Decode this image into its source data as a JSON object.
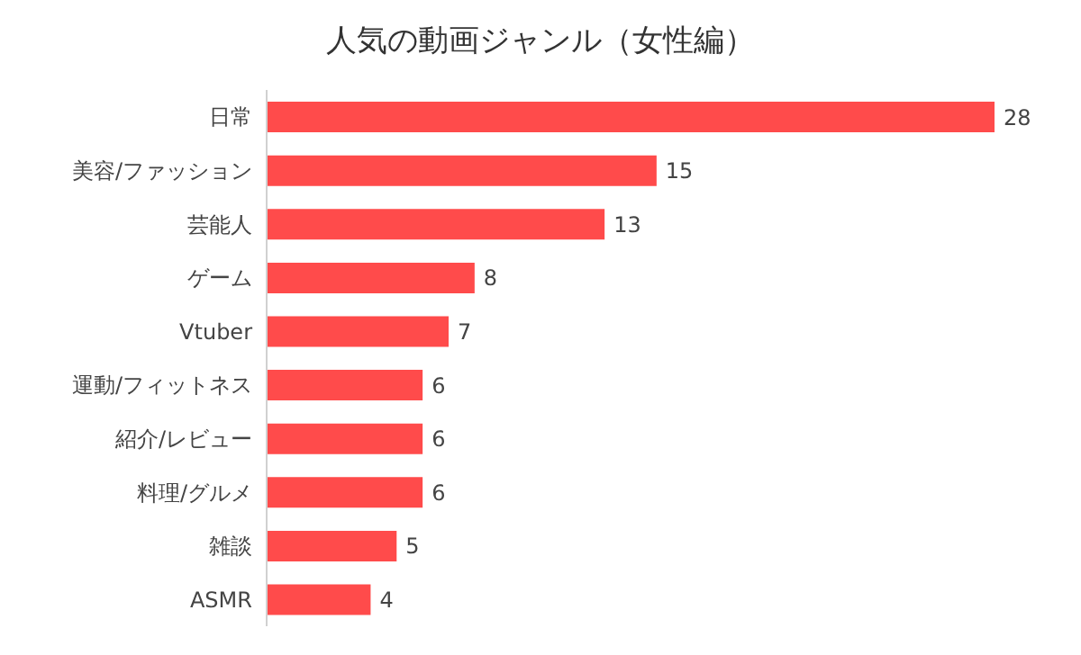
{
  "chart_data": {
    "type": "bar",
    "orientation": "horizontal",
    "title": "人気の動画ジャンル（女性編）",
    "categories": [
      "日常",
      "美容/ファッション",
      "芸能人",
      "ゲーム",
      "Vtuber",
      "運動/フィットネス",
      "紹介/レビュー",
      "料理/グルメ",
      "雑談",
      "ASMR"
    ],
    "values": [
      28,
      15,
      13,
      8,
      7,
      6,
      6,
      6,
      5,
      4
    ],
    "color": "#ff4b4b",
    "data_labels": true,
    "grid": false,
    "legend": false
  }
}
